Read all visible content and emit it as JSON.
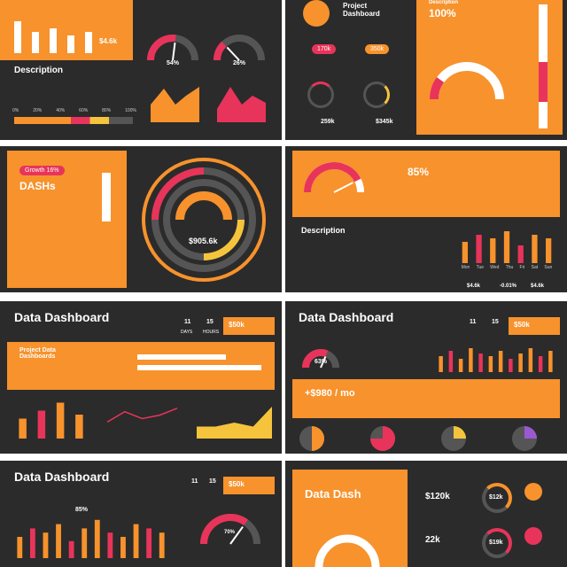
{
  "slides": [
    {
      "price": "$4.6k",
      "description": "Description",
      "gauges": [
        {
          "value": 54,
          "value_label": "54%",
          "lim": [
            0,
            100
          ]
        },
        {
          "value": 26,
          "value_label": "26%",
          "lim": [
            0,
            100
          ]
        }
      ],
      "bars": {
        "values": [
          9,
          6,
          7,
          5,
          6
        ],
        "ylim": [
          0,
          10
        ]
      },
      "progress_ticks": [
        "0%",
        "20%",
        "40%",
        "60%",
        "80%",
        "100%"
      ]
    },
    {
      "title": "Project Dashboard",
      "percent": "100%",
      "pills": [
        "170k",
        "350k"
      ],
      "stats": [
        "259k",
        "$345k"
      ],
      "description": "Description"
    },
    {
      "title": "DASHs",
      "pill": "Growth 16%",
      "total": "$905.6k"
    },
    {
      "gauge": {
        "value": 85,
        "value_label": "85%",
        "lim": [
          0,
          100
        ]
      },
      "description": "Description",
      "stats": [
        "$4.6k",
        "-0.01%",
        "$4.6k"
      ],
      "bars": {
        "values": [
          6,
          8,
          7,
          9,
          5,
          8,
          7
        ],
        "ylim": [
          0,
          10
        ]
      },
      "days": [
        "Mon",
        "Tue",
        "Wed",
        "Thu",
        "Fri",
        "Sat",
        "Sun"
      ]
    },
    {
      "title": "Data Dashboard",
      "days": "11",
      "hours": "15",
      "days_label": "DAYS",
      "hours_label": "HOURS",
      "price": "$50k",
      "subtitle": "Project Data Dashboards",
      "bars": {
        "values": [
          5,
          7,
          9,
          6
        ],
        "ylim": [
          0,
          10
        ]
      },
      "line": {
        "values": [
          4,
          7,
          5,
          6,
          8
        ],
        "ylim": [
          0,
          10
        ]
      },
      "area": {
        "values": [
          3,
          3,
          4,
          3,
          8
        ],
        "ylim": [
          0,
          10
        ]
      }
    },
    {
      "title": "Data Dashboard",
      "days": "11",
      "hours": "15",
      "price": "$50k",
      "gauge": {
        "value": 63,
        "value_label": "63%",
        "lim": [
          0,
          100
        ]
      },
      "amount": "+$980 / mo",
      "bars": {
        "values": [
          6,
          8,
          5,
          9,
          7,
          6,
          8,
          5,
          7,
          9,
          6,
          8
        ],
        "ylim": [
          0,
          10
        ]
      }
    },
    {
      "title": "Data Dashboard",
      "days": "11",
      "hours": "15",
      "price": "$50k",
      "percent": "85%",
      "gauge": {
        "value": 70,
        "value_label": "70%",
        "lim": [
          0,
          100
        ]
      },
      "bars": {
        "values": [
          5,
          7,
          6,
          8,
          4,
          7,
          9,
          6,
          5,
          8,
          7,
          6
        ],
        "ylim": [
          0,
          10
        ]
      }
    },
    {
      "title": "Data Dash",
      "stats": [
        "$120k",
        "22k"
      ],
      "rings": [
        "$12k",
        "$19k"
      ]
    }
  ]
}
